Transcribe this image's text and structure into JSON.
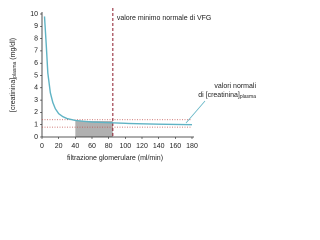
{
  "chart_data": {
    "type": "line",
    "xlabel": "filtrazione glomerulare (ml/min)",
    "ylabel": {
      "main": "[creatinina]",
      "sub": "plasma",
      "unit": "(mg/dl)"
    },
    "x": [
      3,
      5,
      7,
      10,
      13,
      16,
      20,
      25,
      30,
      40,
      50,
      60,
      80,
      100,
      120,
      140,
      160,
      180
    ],
    "series": [
      {
        "color": "#5fb3c4",
        "values": [
          9.8,
          7.6,
          5.2,
          3.6,
          2.8,
          2.3,
          1.9,
          1.65,
          1.5,
          1.35,
          1.28,
          1.22,
          1.16,
          1.11,
          1.07,
          1.04,
          1.02,
          1.0
        ]
      }
    ],
    "xlim": [
      0,
      180
    ],
    "ylim": [
      0,
      10
    ],
    "xticks": [
      0,
      20,
      40,
      60,
      80,
      100,
      120,
      140,
      160,
      180
    ],
    "yticks": [
      0,
      1,
      2,
      3,
      4,
      5,
      6,
      7,
      8,
      9,
      10
    ],
    "vline": {
      "value": 85,
      "color": "#8b1a2b",
      "label": "valore minimo normale di VFG"
    },
    "hlines": {
      "values": [
        1.4,
        0.8
      ],
      "color": "#c0504d"
    },
    "shade": {
      "x": [
        40,
        85
      ],
      "y": 1.3,
      "color": "#b0b0b0"
    },
    "annotation": {
      "lines": [
        "valori normali",
        "di [creatinina]"
      ],
      "sub": "plasma"
    }
  }
}
